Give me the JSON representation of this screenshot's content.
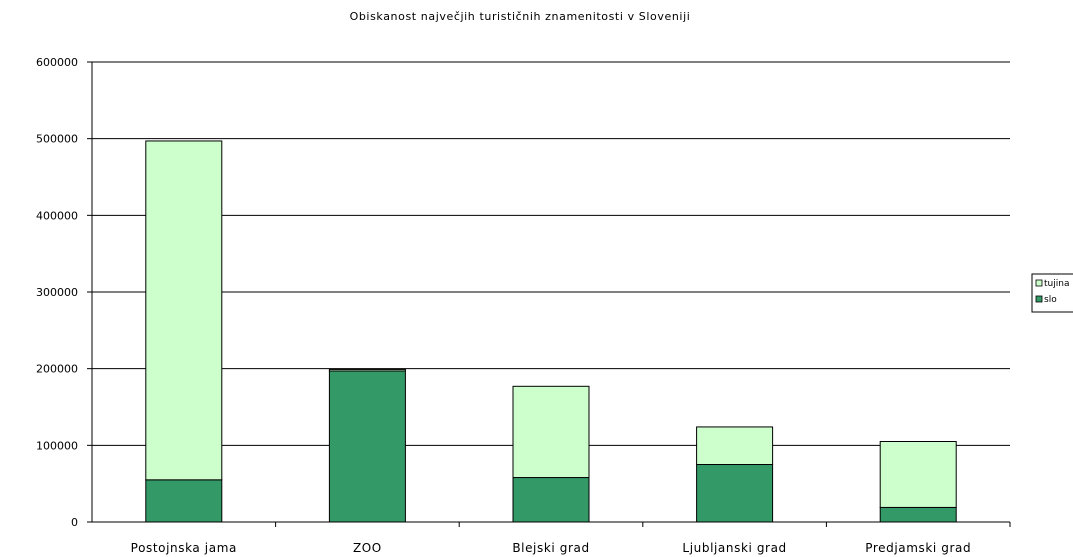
{
  "chart_data": {
    "type": "bar",
    "stacked": true,
    "title": "Obiskanost največjih turističnih znamenitosti v Sloveniji",
    "xlabel": "",
    "ylabel": "",
    "categories": [
      "Postojnska jama",
      "ZOO",
      "Blejski grad",
      "Ljubljanski grad",
      "Predjamski grad"
    ],
    "ylim": [
      0,
      600000
    ],
    "yticks": [
      "0",
      "100000",
      "200000",
      "300000",
      "400000",
      "500000",
      "600000"
    ],
    "grid": true,
    "legend_position": "right",
    "series": [
      {
        "name": "slo",
        "color": "#339966",
        "values": [
          55000,
          197000,
          58000,
          75000,
          19000
        ]
      },
      {
        "name": "tujina",
        "color": "#CCFFCC",
        "values": [
          442000,
          2000,
          119000,
          49000,
          86000
        ]
      }
    ],
    "legend_labels": [
      "tujina",
      "slo"
    ]
  }
}
